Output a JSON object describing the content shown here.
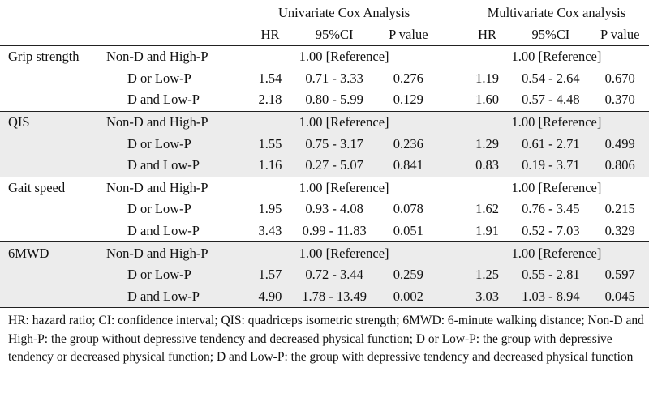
{
  "header": {
    "univariate": "Univariate Cox Analysis",
    "multivariate": "Multivariate Cox analysis",
    "hr": "HR",
    "ci": "95%CI",
    "p": "P value"
  },
  "groups": [
    {
      "measure": "Grip strength",
      "rows": [
        {
          "group": "Non-D and High-P",
          "uni_ref": "1.00 [Reference]",
          "multi_ref": "1.00 [Reference]"
        },
        {
          "group": "D or Low-P",
          "uni_hr": "1.54",
          "uni_ci": "0.71 - 3.33",
          "uni_p": "0.276",
          "multi_hr": "1.19",
          "multi_ci": "0.54 - 2.64",
          "multi_p": "0.670"
        },
        {
          "group": "D and Low-P",
          "uni_hr": "2.18",
          "uni_ci": "0.80 - 5.99",
          "uni_p": "0.129",
          "multi_hr": "1.60",
          "multi_ci": "0.57 - 4.48",
          "multi_p": "0.370"
        }
      ]
    },
    {
      "measure": "QIS",
      "rows": [
        {
          "group": "Non-D and High-P",
          "uni_ref": "1.00 [Reference]",
          "multi_ref": "1.00 [Reference]"
        },
        {
          "group": "D or Low-P",
          "uni_hr": "1.55",
          "uni_ci": "0.75 - 3.17",
          "uni_p": "0.236",
          "multi_hr": "1.29",
          "multi_ci": "0.61 - 2.71",
          "multi_p": "0.499"
        },
        {
          "group": "D and Low-P",
          "uni_hr": "1.16",
          "uni_ci": "0.27 - 5.07",
          "uni_p": "0.841",
          "multi_hr": "0.83",
          "multi_ci": "0.19 - 3.71",
          "multi_p": "0.806"
        }
      ]
    },
    {
      "measure": "Gait speed",
      "rows": [
        {
          "group": "Non-D and High-P",
          "uni_ref": "1.00 [Reference]",
          "multi_ref": "1.00 [Reference]"
        },
        {
          "group": "D or Low-P",
          "uni_hr": "1.95",
          "uni_ci": "0.93 - 4.08",
          "uni_p": "0.078",
          "multi_hr": "1.62",
          "multi_ci": "0.76 - 3.45",
          "multi_p": "0.215"
        },
        {
          "group": "D and Low-P",
          "uni_hr": "3.43",
          "uni_ci": "0.99 - 11.83",
          "uni_p": "0.051",
          "multi_hr": "1.91",
          "multi_ci": "0.52 - 7.03",
          "multi_p": "0.329"
        }
      ]
    },
    {
      "measure": "6MWD",
      "rows": [
        {
          "group": "Non-D and High-P",
          "uni_ref": "1.00 [Reference]",
          "multi_ref": "1.00 [Reference]"
        },
        {
          "group": "D or Low-P",
          "uni_hr": "1.57",
          "uni_ci": "0.72 - 3.44",
          "uni_p": "0.259",
          "multi_hr": "1.25",
          "multi_ci": "0.55 - 2.81",
          "multi_p": "0.597"
        },
        {
          "group": "D and Low-P",
          "uni_hr": "4.90",
          "uni_ci": "1.78 - 13.49",
          "uni_p": "0.002",
          "multi_hr": "3.03",
          "multi_ci": "1.03 - 8.94",
          "multi_p": "0.045"
        }
      ]
    }
  ],
  "footnote": "HR: hazard ratio; CI: confidence interval; QIS: quadriceps isometric strength; 6MWD: 6-minute walking distance; Non-D and High-P: the group without depressive tendency and decreased physical function; D or Low-P: the group with depressive tendency or decreased physical function; D and Low-P: the group with depressive tendency and decreased physical function"
}
